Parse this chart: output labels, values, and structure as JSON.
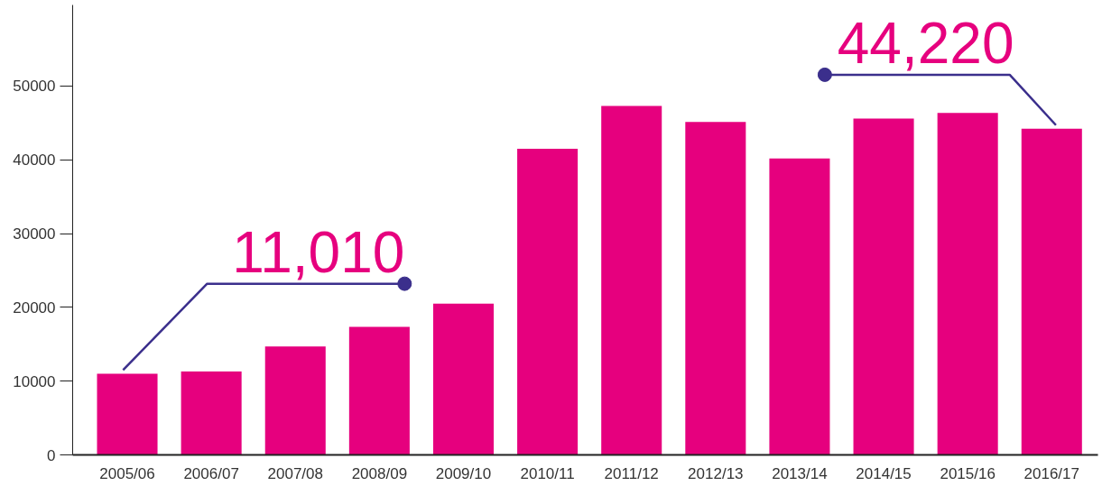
{
  "chart_data": {
    "type": "bar",
    "categories": [
      "2005/06",
      "2006/07",
      "2007/08",
      "2008/09",
      "2009/10",
      "2010/11",
      "2011/12",
      "2012/13",
      "2013/14",
      "2014/15",
      "2015/16",
      "2016/17"
    ],
    "values": [
      11010,
      11300,
      14700,
      17350,
      20500,
      41500,
      47300,
      45150,
      40200,
      45600,
      46350,
      44220
    ],
    "color": "#e6007e",
    "ylim": [
      0,
      61000
    ],
    "yticks": [
      0,
      10000,
      20000,
      30000,
      40000,
      50000
    ],
    "grid": false,
    "annotations": [
      {
        "text": "11,010",
        "x": "2005/06",
        "y": 11010
      },
      {
        "text": "44,220",
        "x": "2016/17",
        "y": 44220
      }
    ]
  }
}
